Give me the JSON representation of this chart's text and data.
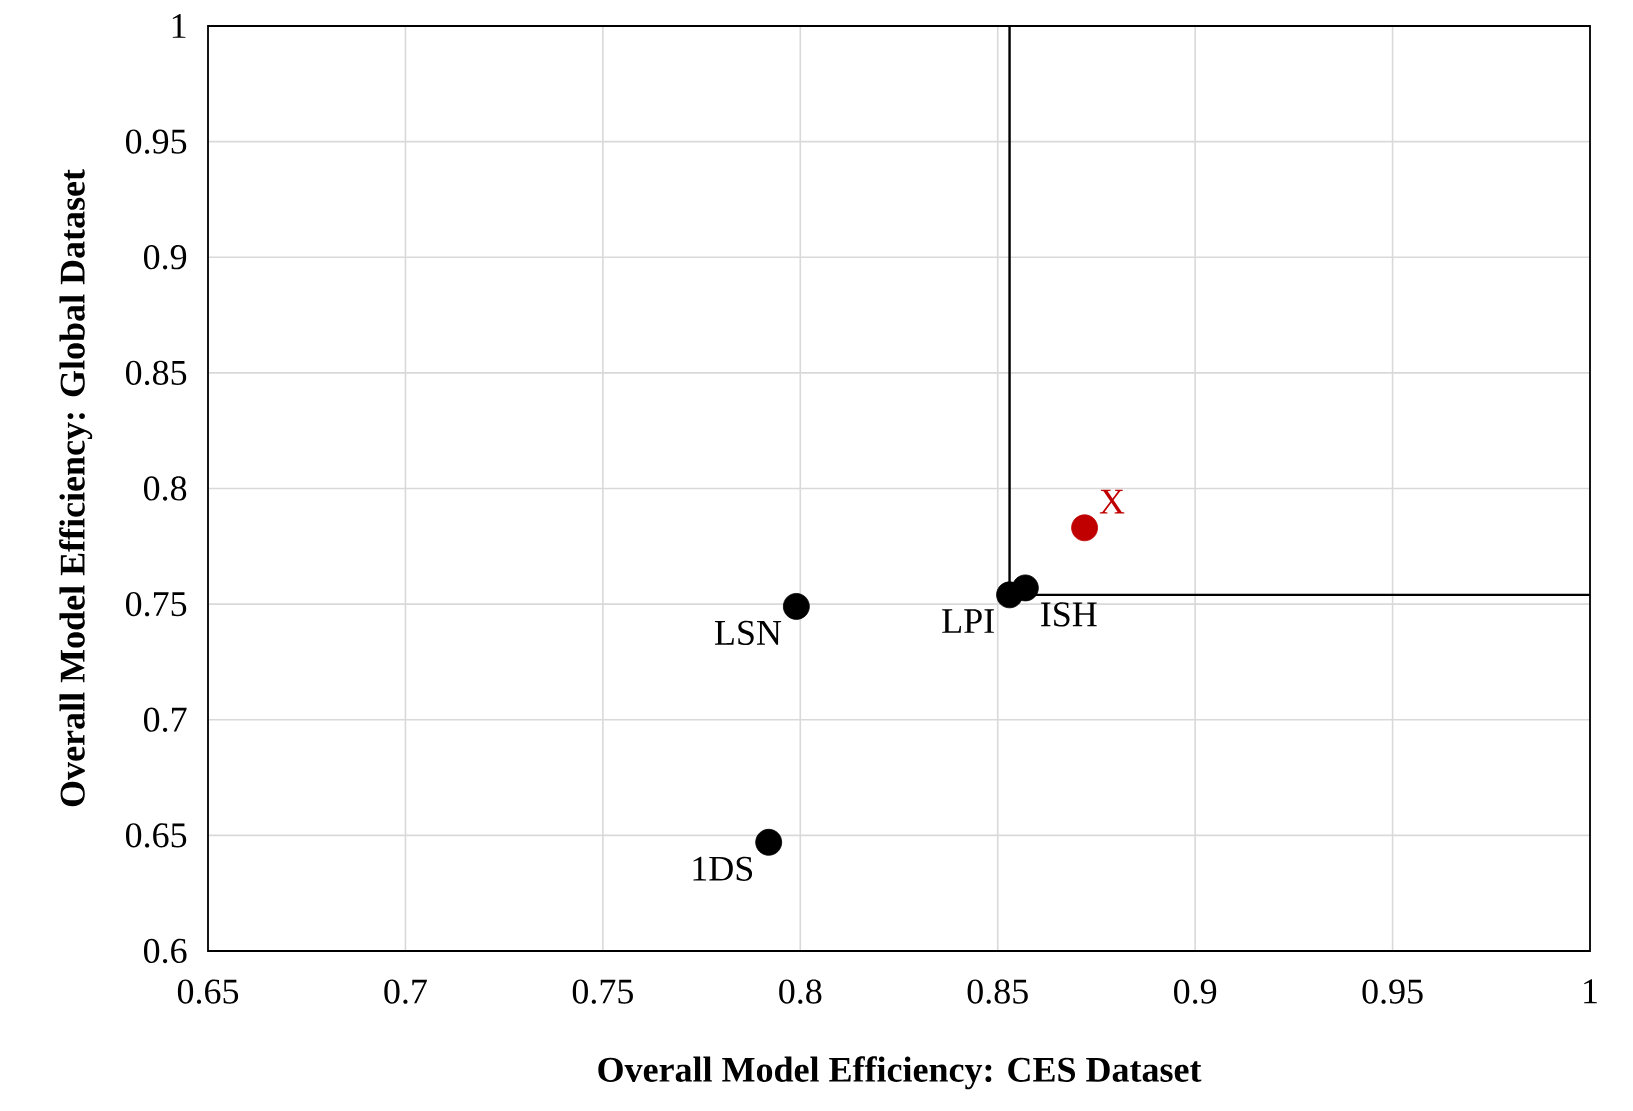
{
  "chart_data": {
    "type": "scatter",
    "xlabel": "Overall Model Efficiency: **CES Dataset**",
    "ylabel": "Overall Model Efficiency: **Global Dataset**",
    "xlim": [
      0.65,
      1
    ],
    "ylim": [
      0.6,
      1
    ],
    "xticks": [
      0.65,
      0.7,
      0.75,
      0.8,
      0.85,
      0.9,
      0.95,
      1
    ],
    "yticks": [
      0.6,
      0.65,
      0.7,
      0.75,
      0.8,
      0.85,
      0.9,
      0.95,
      1
    ],
    "grid": true,
    "series": [
      {
        "colors": [
          "#000000",
          "#000000",
          "#000000",
          "#000000",
          "#c00000"
        ],
        "x": [
          0.792,
          0.799,
          0.853,
          0.857,
          0.872
        ],
        "values": [
          0.647,
          0.749,
          0.754,
          0.757,
          0.783
        ]
      },
      {
        "type": "line",
        "color": "#000000",
        "x": [
          0.853,
          0.853,
          1
        ],
        "values": [
          1,
          0.754,
          0.754
        ]
      }
    ],
    "annotations": [
      {
        "text": "1DS",
        "x": 0.792,
        "y": 0.647
      },
      {
        "text": "LSN",
        "x": 0.799,
        "y": 0.749
      },
      {
        "text": "LPI",
        "x": 0.853,
        "y": 0.754
      },
      {
        "text": "ISH",
        "x": 0.857,
        "y": 0.757
      },
      {
        "text": "X",
        "x": 0.872,
        "y": 0.783
      }
    ]
  }
}
